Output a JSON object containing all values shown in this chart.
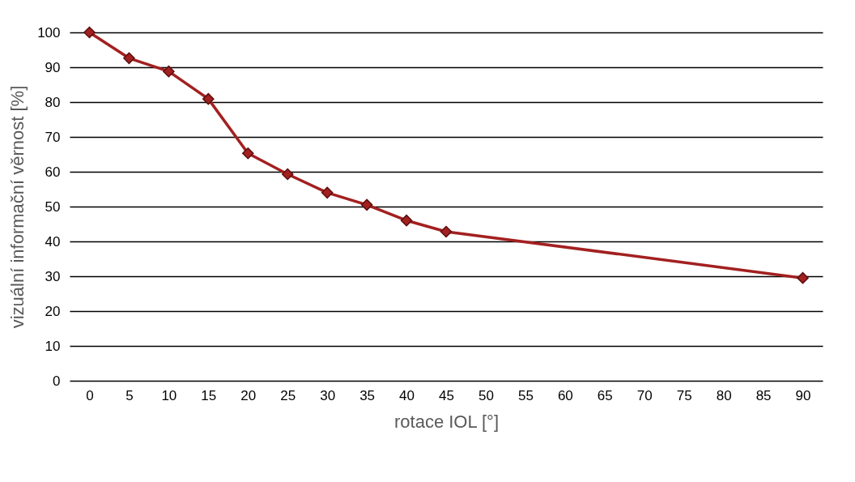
{
  "chart_data": {
    "type": "line",
    "xlabel": "rotace IOL [°]",
    "ylabel": "vizuální informační věrnost [%]",
    "x": [
      0,
      5,
      10,
      15,
      20,
      25,
      30,
      35,
      40,
      45,
      90
    ],
    "series": [
      {
        "color": "#a32020",
        "values": [
          100,
          92.6,
          88.8,
          80.9,
          65.3,
          59.3,
          54,
          50.5,
          46,
          42.8,
          29.5
        ]
      }
    ],
    "xlim": [
      -2.5,
      92.5
    ],
    "xticks": [
      0,
      5,
      10,
      15,
      20,
      25,
      30,
      35,
      40,
      45,
      50,
      55,
      60,
      65,
      70,
      75,
      80,
      85,
      90
    ],
    "ylim": [
      0,
      100
    ],
    "yticks": [
      0,
      10,
      20,
      30,
      40,
      50,
      60,
      70,
      80,
      90,
      100
    ],
    "grid": "y",
    "marker": "diamond",
    "line_style": "solid"
  }
}
